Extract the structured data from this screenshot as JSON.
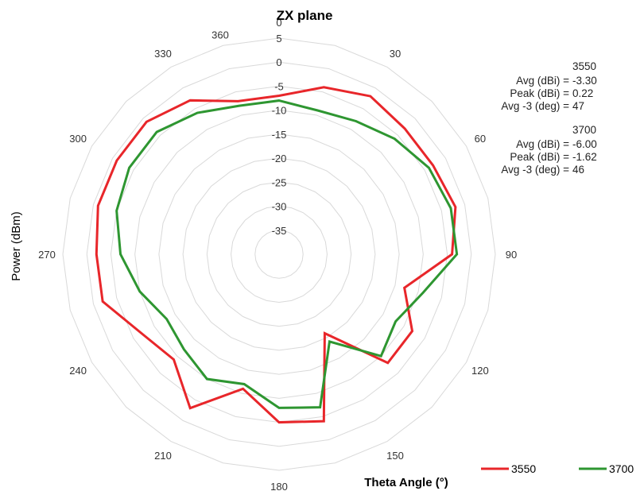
{
  "chart_data": {
    "type": "radar",
    "title": "ZX plane",
    "xlabel": "Theta  Angle (°)",
    "ylabel": "Power (dBm)",
    "r_range": [
      -40,
      5
    ],
    "r_ticks": [
      5,
      0,
      -5,
      -10,
      -15,
      -20,
      -25,
      -30,
      -35
    ],
    "r_tick_labels": [
      "5",
      "0",
      "-5",
      "-10",
      "-15",
      "-20",
      "-25",
      "-30",
      "-35"
    ],
    "theta_ticks": [
      0,
      30,
      60,
      90,
      120,
      150,
      180,
      210,
      240,
      270,
      300,
      330,
      360
    ],
    "theta_tick_labels": [
      "0",
      "30",
      "60",
      "90",
      "120",
      "150",
      "180",
      "210",
      "240",
      "270",
      "300",
      "330",
      "360"
    ],
    "grid": true,
    "legend_position": "bottom-right",
    "theta": [
      0,
      15,
      30,
      45,
      60,
      75,
      90,
      105,
      120,
      135,
      150,
      165,
      180,
      195,
      210,
      225,
      240,
      255,
      270,
      285,
      300,
      315,
      330,
      345
    ],
    "series": [
      {
        "name": "3550",
        "color": "#e8262a",
        "values": [
          -7,
          -4,
          -2,
          -3,
          -3,
          -2,
          -4,
          -13,
          -8,
          -8,
          -21,
          -4,
          -5,
          -11,
          -3,
          -9,
          -7,
          -2,
          -2,
          -1,
          -1,
          -1,
          -3,
          -7
        ]
      },
      {
        "name": "3700",
        "color": "#2e9631",
        "values": [
          -8,
          -9,
          -8,
          -6,
          -4,
          -3,
          -3,
          -9,
          -12,
          -10,
          -19,
          -7,
          -8,
          -12,
          -10,
          -12,
          -13,
          -10,
          -7,
          -5,
          -4,
          -4,
          -6,
          -8
        ]
      }
    ],
    "annotations": [
      {
        "heading": "3550",
        "rows": [
          {
            "label": "Avg (dBi) =",
            "value": "-3.30"
          },
          {
            "label": "Peak (dBi) =",
            "value": "0.22"
          },
          {
            "label": "Avg -3 (deg) =",
            "value": "47"
          }
        ]
      },
      {
        "heading": "3700",
        "rows": [
          {
            "label": "Avg (dBi) =",
            "value": "-6.00"
          },
          {
            "label": "Peak (dBi) =",
            "value": "-1.62"
          },
          {
            "label": "Avg -3 (deg) =",
            "value": "46"
          }
        ]
      }
    ]
  }
}
